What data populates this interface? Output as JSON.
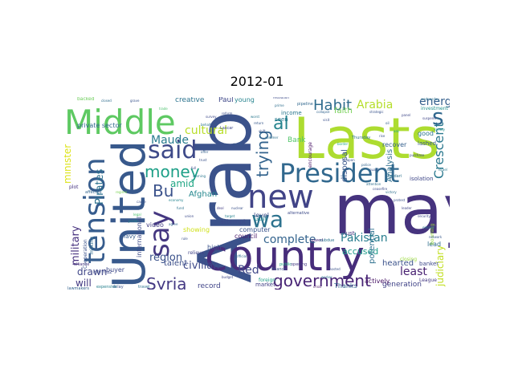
{
  "figure": {
    "title": "2012-01"
  },
  "word_cloud": {
    "background": "#ffffff",
    "colormap": "viridis",
    "words": [
      {
        "text": "Arab",
        "color": "#3b528b"
      },
      {
        "text": "may",
        "color": "#46337e"
      },
      {
        "text": "Lasts",
        "color": "#addc30"
      },
      {
        "text": "country",
        "color": "#472d7b"
      },
      {
        "text": "United",
        "color": "#38598c"
      },
      {
        "text": "Middle",
        "color": "#5ec962"
      },
      {
        "text": "new",
        "color": "#414487"
      },
      {
        "text": "President",
        "color": "#31688e"
      },
      {
        "text": "tension",
        "color": "#365c8d"
      },
      {
        "text": "say",
        "color": "#453781"
      },
      {
        "text": "said",
        "color": "#3e4a89"
      },
      {
        "text": "wa",
        "color": "#2c728e"
      },
      {
        "text": "government",
        "color": "#482475"
      },
      {
        "text": "Syria",
        "color": "#443983"
      },
      {
        "text": "money",
        "color": "#1fa088"
      },
      {
        "text": "Habit",
        "color": "#2f6c8e"
      },
      {
        "text": "trying",
        "color": "#33638d"
      },
      {
        "text": "Crescent",
        "color": "#2a788e"
      },
      {
        "text": "al",
        "color": "#25848e"
      },
      {
        "text": "s",
        "color": "#31688e"
      },
      {
        "text": "Bu",
        "color": "#3b528b"
      },
      {
        "text": "energy",
        "color": "#355f8d"
      },
      {
        "text": "Arabia",
        "color": "#b5de2b"
      },
      {
        "text": "cultural",
        "color": "#b8de29"
      },
      {
        "text": "judiciary",
        "color": "#c2df23"
      },
      {
        "text": "Pakistan",
        "color": "#287d8e"
      },
      {
        "text": "complete",
        "color": "#33638d"
      },
      {
        "text": "Maude",
        "color": "#287c8e"
      },
      {
        "text": "Pirates",
        "color": "#2c718e"
      },
      {
        "text": "civilian",
        "color": "#3e4989"
      },
      {
        "text": "military",
        "color": "#46307e"
      },
      {
        "text": "region",
        "color": "#3b528b"
      },
      {
        "text": "drawn",
        "color": "#404688"
      },
      {
        "text": "will",
        "color": "#443a83"
      },
      {
        "text": "least",
        "color": "#482071"
      },
      {
        "text": "minister",
        "color": "#dde318"
      },
      {
        "text": "amid",
        "color": "#21a685"
      },
      {
        "text": "Afghan",
        "color": "#24878e"
      },
      {
        "text": "Red",
        "color": "#3f4788"
      },
      {
        "text": "accused",
        "color": "#1e9b8a"
      },
      {
        "text": "potential",
        "color": "#2d708e"
      },
      {
        "text": "disposal",
        "color": "#39568c"
      },
      {
        "text": "Analysis",
        "color": "#2e6f8e"
      },
      {
        "text": "faith",
        "color": "#75d054"
      },
      {
        "text": "Bank",
        "color": "#52c569"
      },
      {
        "text": "Gulf",
        "color": "#24868e"
      },
      {
        "text": "council",
        "color": "#481769"
      },
      {
        "text": "international",
        "color": "#3e4c8a"
      },
      {
        "text": "talent",
        "color": "#3c4f8a"
      },
      {
        "text": "record",
        "color": "#404588"
      },
      {
        "text": "creative",
        "color": "#2c738e"
      },
      {
        "text": "private sector",
        "color": "#31688e"
      },
      {
        "text": "computer",
        "color": "#3a548c"
      },
      {
        "text": "showing",
        "color": "#d0e11c"
      },
      {
        "text": "attempt",
        "color": "#3e4989"
      },
      {
        "text": "video",
        "color": "#433e85"
      },
      {
        "text": "navy",
        "color": "#365d8d"
      },
      {
        "text": "hearted",
        "color": "#3b528b"
      },
      {
        "text": "generation",
        "color": "#404387"
      },
      {
        "text": "actively",
        "color": "#471365"
      },
      {
        "text": "Thanks",
        "color": "#32658e"
      },
      {
        "text": "banker",
        "color": "#3e4a89"
      },
      {
        "text": "income",
        "color": "#2a778e"
      },
      {
        "text": "Paul",
        "color": "#3f4889"
      },
      {
        "text": "young",
        "color": "#25838e"
      },
      {
        "text": "level",
        "color": "#3c4f8a"
      },
      {
        "text": "high",
        "color": "#3a538b"
      },
      {
        "text": "League",
        "color": "#443983"
      },
      {
        "text": "lead",
        "color": "#2e6d8e"
      },
      {
        "text": "buyer",
        "color": "#3e4989"
      },
      {
        "text": "market",
        "color": "#424086"
      },
      {
        "text": "foreign",
        "color": "#1fa188"
      },
      {
        "text": "closing",
        "color": "#9bd93c"
      },
      {
        "text": "recover",
        "color": "#35608d"
      },
      {
        "text": "good",
        "color": "#2b758e"
      },
      {
        "text": "lashed",
        "color": "#38598c"
      },
      {
        "text": "isolation",
        "color": "#3f4788"
      },
      {
        "text": "encourage",
        "color": "#471164"
      },
      {
        "text": "investment",
        "color": "#21918c"
      },
      {
        "text": "booming",
        "color": "#9bd93c"
      },
      {
        "text": "seen",
        "color": "#2a788e"
      },
      {
        "text": "Cooperation",
        "color": "#3b528b"
      },
      {
        "text": "milking",
        "color": "#2f6b8e"
      },
      {
        "text": "Hormuz",
        "color": "#3e4a89"
      },
      {
        "text": "Zardari",
        "color": "#2d718e"
      },
      {
        "text": "Lascar",
        "color": "#3f4889"
      },
      {
        "text": "must",
        "color": "#46327e"
      },
      {
        "text": "relieve",
        "color": "#414487"
      },
      {
        "text": "Thursday",
        "color": "#2c738e"
      },
      {
        "text": "alternative",
        "color": "#3e4c8a"
      },
      {
        "text": "public",
        "color": "#22a884"
      },
      {
        "text": "opening",
        "color": "#443983"
      },
      {
        "text": "vowed",
        "color": "#472a7a"
      },
      {
        "text": "subdue",
        "color": "#2c728e"
      },
      {
        "text": "finance",
        "color": "#3b528b"
      },
      {
        "text": "delay",
        "color": "#3b528b"
      },
      {
        "text": "expensive",
        "color": "#26818e"
      },
      {
        "text": "travel",
        "color": "#2c728e"
      },
      {
        "text": "pipeline",
        "color": "#31688e"
      },
      {
        "text": "resolution",
        "color": "#3e4c8a"
      },
      {
        "text": "prime",
        "color": "#2e6e8e"
      },
      {
        "text": "plot",
        "color": "#463480"
      },
      {
        "text": "affected",
        "color": "#32658e"
      },
      {
        "text": "alliance",
        "color": "#46337e"
      },
      {
        "text": "lawmakers",
        "color": "#33638d"
      },
      {
        "text": "backed",
        "color": "#6ccd5a"
      },
      {
        "text": "closed",
        "color": "#2f6c8e"
      },
      {
        "text": "grave",
        "color": "#3a548c"
      },
      {
        "text": "wednesday",
        "color": "#2c738e"
      },
      {
        "text": "suspend",
        "color": "#404588"
      },
      {
        "text": "variety",
        "color": "#20928c"
      },
      {
        "text": "strategic",
        "color": "#3a548c"
      },
      {
        "text": "collapse",
        "color": "#32648e"
      },
      {
        "text": "purchase",
        "color": "#3f4788"
      },
      {
        "text": "Israel",
        "color": "#2a788e"
      },
      {
        "text": "surely",
        "color": "#38588c"
      },
      {
        "text": "reform",
        "color": "#3c4f8a"
      },
      {
        "text": "behalf",
        "color": "#2c728e"
      },
      {
        "text": "cause",
        "color": "#3b528b"
      },
      {
        "text": "legal",
        "color": "#4ac16d"
      },
      {
        "text": "regime",
        "color": "#7ad151"
      },
      {
        "text": "Jordan",
        "color": "#25848e"
      },
      {
        "text": "offer",
        "color": "#35608d"
      },
      {
        "text": "trust",
        "color": "#3b528b"
      },
      {
        "text": "full",
        "color": "#3e4c8a"
      },
      {
        "text": "warning",
        "color": "#2a768e"
      },
      {
        "text": "deal",
        "color": "#433d84"
      },
      {
        "text": "nuclear",
        "color": "#3b528b"
      },
      {
        "text": "target",
        "color": "#26828e"
      },
      {
        "text": "official",
        "color": "#2f6b8e"
      },
      {
        "text": "budget",
        "color": "#3f4889"
      },
      {
        "text": "border",
        "color": "#22a884"
      },
      {
        "text": "weapon",
        "color": "#3b528b"
      },
      {
        "text": "police",
        "color": "#32658e"
      },
      {
        "text": "guard",
        "color": "#3a548c"
      },
      {
        "text": "victory",
        "color": "#2d708e"
      },
      {
        "text": "protest",
        "color": "#3b528b"
      },
      {
        "text": "leader",
        "color": "#404688"
      },
      {
        "text": "security",
        "color": "#3e4989"
      },
      {
        "text": "elected",
        "color": "#2a788e"
      },
      {
        "text": "network",
        "color": "#38598c"
      },
      {
        "text": "visit",
        "color": "#3b528b"
      },
      {
        "text": "attention",
        "color": "#2e6e8e"
      },
      {
        "text": "ceasefire",
        "color": "#3e4c8a"
      },
      {
        "text": "crisis",
        "color": "#471063"
      },
      {
        "text": "worker",
        "color": "#2c728e"
      },
      {
        "text": "hosted",
        "color": "#3b528b"
      },
      {
        "text": "trade",
        "color": "#4ac16d"
      },
      {
        "text": "survey",
        "color": "#3e4989"
      },
      {
        "text": "worst",
        "color": "#2a788e"
      },
      {
        "text": "return",
        "color": "#38598c"
      },
      {
        "text": "shift",
        "color": "#3b528b"
      },
      {
        "text": "summer",
        "color": "#2d708e"
      },
      {
        "text": "panel",
        "color": "#3f4788"
      },
      {
        "text": "oil",
        "color": "#35608d"
      },
      {
        "text": "ask",
        "color": "#22a884"
      },
      {
        "text": "rise",
        "color": "#3b528b"
      },
      {
        "text": "economy",
        "color": "#25848e"
      },
      {
        "text": "fund",
        "color": "#2c728e"
      },
      {
        "text": "union",
        "color": "#3e4c8a"
      },
      {
        "text": "agree",
        "color": "#32658e"
      },
      {
        "text": "rule",
        "color": "#3b528b"
      }
    ]
  }
}
